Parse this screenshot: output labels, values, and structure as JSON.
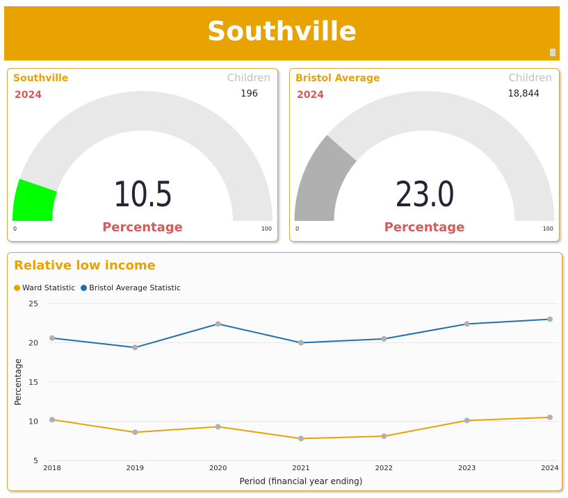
{
  "header": {
    "title": "Southville"
  },
  "gauges": [
    {
      "area": "Southville",
      "year": "2024",
      "kind": "Children",
      "count": "196",
      "value": 10.5,
      "value_label": "10.5",
      "caption": "Percentage",
      "min": "0",
      "max": "100",
      "fill_color": "#00FF00"
    },
    {
      "area": "Bristol Average",
      "year": "2024",
      "kind": "Children",
      "count": "18,844",
      "value": 23.0,
      "value_label": "23.0",
      "caption": "Percentage",
      "min": "0",
      "max": "100",
      "fill_color": "#B0B0B0"
    }
  ],
  "chart_data": {
    "type": "line",
    "title": "Relative low income",
    "xlabel": "Period (financial year ending)",
    "ylabel": "Percentage",
    "categories": [
      "2018",
      "2019",
      "2020",
      "2021",
      "2022",
      "2023",
      "2024"
    ],
    "yticks": [
      "5",
      "10",
      "15",
      "20",
      "25"
    ],
    "ylim": [
      5,
      25
    ],
    "grid": true,
    "legend_position": "top-left",
    "series": [
      {
        "name": "Ward Statistic",
        "color": "#E8A202",
        "values": [
          10.2,
          8.6,
          9.3,
          7.8,
          8.1,
          10.1,
          10.5
        ]
      },
      {
        "name": "Bristol Average Statistic",
        "color": "#1F6FAE",
        "values": [
          20.6,
          19.4,
          22.4,
          20.0,
          20.5,
          22.4,
          23.0
        ]
      }
    ]
  }
}
